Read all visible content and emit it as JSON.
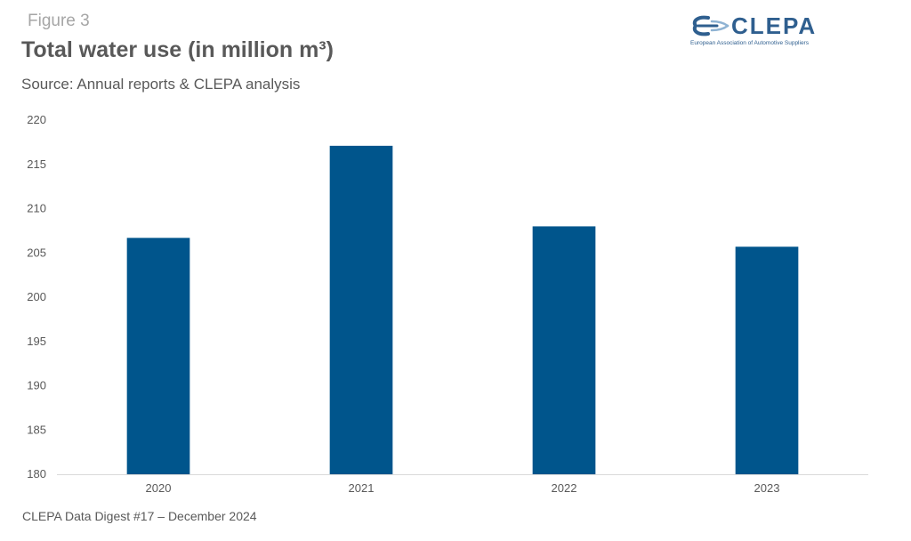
{
  "header": {
    "figure_label": "Figure 3",
    "subtitle": "Source: Annual reports & CLEPA analysis"
  },
  "logo": {
    "name": "CLEPA",
    "tagline": "European Association of Automotive Suppliers",
    "color": "#2f5f8f"
  },
  "footer": {
    "text": "CLEPA Data Digest #17 – December 2024"
  },
  "chart_data": {
    "type": "bar",
    "title": "Total water use (in million m³)",
    "xlabel": "",
    "ylabel": "",
    "categories": [
      "2020",
      "2021",
      "2022",
      "2023"
    ],
    "values": [
      206.7,
      217.1,
      208.0,
      205.7
    ],
    "ylim": [
      180,
      220
    ],
    "yticks": [
      180,
      185,
      190,
      195,
      200,
      205,
      210,
      215,
      220
    ],
    "grid": false,
    "legend": "none",
    "bar_color": "#00558c"
  }
}
